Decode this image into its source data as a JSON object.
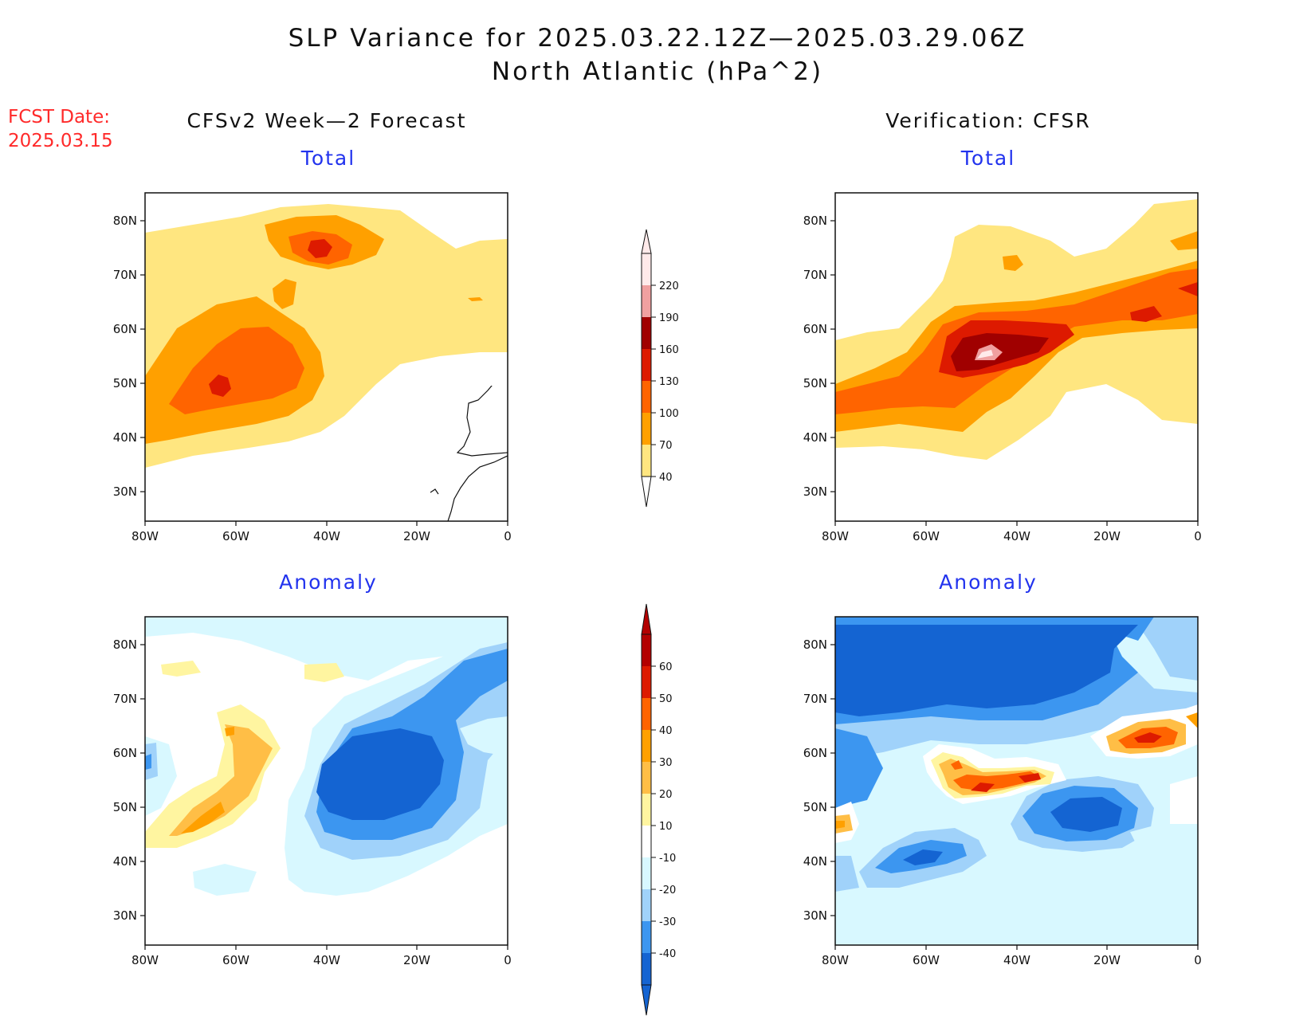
{
  "title": {
    "line1": "SLP Variance for 2025.03.22.12Z—2025.03.29.06Z",
    "line2": "North Atlantic (hPa^2)"
  },
  "fcst": {
    "label": "FCST Date:",
    "date": "2025.03.15"
  },
  "columns": [
    {
      "heading": "CFSv2 Week—2 Forecast"
    },
    {
      "heading": "Verification: CFSR"
    }
  ],
  "panels": {
    "forecast_total": {
      "title": "Total"
    },
    "verification_total": {
      "title": "Total"
    },
    "forecast_anomaly": {
      "title": "Anomaly"
    },
    "verification_anomaly": {
      "title": "Anomaly"
    }
  },
  "axes": {
    "lat_labels": [
      "80N",
      "70N",
      "60N",
      "50N",
      "40N",
      "30N"
    ],
    "lon_labels": [
      "80W",
      "60W",
      "40W",
      "20W",
      "0"
    ]
  },
  "colorbars": {
    "total": {
      "levels": [
        "220",
        "190",
        "160",
        "130",
        "100",
        "70",
        "40"
      ],
      "colors": [
        "#ffeaea",
        "#f0a0a0",
        "#a00000",
        "#dd1a00",
        "#ff6400",
        "#ffa000",
        "#ffe680"
      ]
    },
    "anomaly": {
      "levels": [
        "60",
        "50",
        "40",
        "30",
        "20",
        "10",
        "-10",
        "-20",
        "-30",
        "-40"
      ],
      "colors": [
        "#b30000",
        "#dd1a00",
        "#ff6400",
        "#ffa000",
        "#ffbe46",
        "#fff5a0",
        "#ffffff",
        "#d8f8ff",
        "#a0d2fa",
        "#3c96f0",
        "#1464d2"
      ]
    }
  }
}
